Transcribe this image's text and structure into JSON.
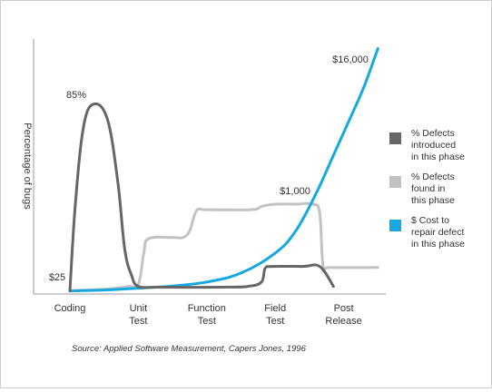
{
  "chart_data": {
    "type": "line",
    "title": "",
    "xlabel": "",
    "ylabel": "Percentage of bugs",
    "categories": [
      "Coding",
      "Unit\nTest",
      "Function\nTest",
      "Field\nTest",
      "Post\nRelease"
    ],
    "grid": false,
    "legend_position": "right",
    "series": [
      {
        "name": "% Defects introduced in this phase",
        "color": "#666666",
        "points": [
          [
            0,
            1
          ],
          [
            0.08,
            40
          ],
          [
            0.2,
            75
          ],
          [
            0.35,
            85
          ],
          [
            0.55,
            78
          ],
          [
            0.7,
            50
          ],
          [
            0.8,
            20
          ],
          [
            0.9,
            8
          ],
          [
            1.0,
            3
          ],
          [
            1.3,
            2.7
          ],
          [
            1.8,
            2.6
          ],
          [
            2.3,
            2.7
          ],
          [
            2.6,
            3
          ],
          [
            2.8,
            5
          ],
          [
            2.85,
            11
          ],
          [
            2.95,
            12
          ],
          [
            3.4,
            12
          ],
          [
            3.65,
            12
          ],
          [
            3.85,
            3
          ]
        ]
      },
      {
        "name": "% Defects found in this phase",
        "color": "#c2c2c2",
        "points": [
          [
            0,
            1
          ],
          [
            0.6,
            2
          ],
          [
            0.85,
            3
          ],
          [
            1.0,
            4
          ],
          [
            1.08,
            18
          ],
          [
            1.15,
            24.5
          ],
          [
            1.5,
            25
          ],
          [
            1.65,
            25
          ],
          [
            1.75,
            28
          ],
          [
            1.85,
            37
          ],
          [
            2.0,
            37.5
          ],
          [
            2.65,
            37.5
          ],
          [
            2.8,
            39
          ],
          [
            3.0,
            40
          ],
          [
            3.3,
            40
          ],
          [
            3.55,
            40
          ],
          [
            3.65,
            36
          ],
          [
            3.7,
            12
          ],
          [
            3.8,
            11.5
          ],
          [
            4.5,
            11.5
          ]
        ]
      },
      {
        "name": "$ Cost to repair defect in this phase",
        "color": "#15a9e0",
        "points": [
          [
            0,
            1
          ],
          [
            0.5,
            1.4
          ],
          [
            1.0,
            2.2
          ],
          [
            1.5,
            3.2
          ],
          [
            2.0,
            5
          ],
          [
            2.5,
            9
          ],
          [
            3.0,
            18
          ],
          [
            3.3,
            28
          ],
          [
            3.6,
            45
          ],
          [
            3.85,
            62
          ],
          [
            4.1,
            79
          ],
          [
            4.3,
            93
          ],
          [
            4.5,
            110
          ]
        ]
      }
    ],
    "annotations": [
      "85%",
      "$25",
      "$1,000",
      "$16,000"
    ]
  },
  "source": "Source: Applied Software Measurement, Capers Jones, 1996"
}
